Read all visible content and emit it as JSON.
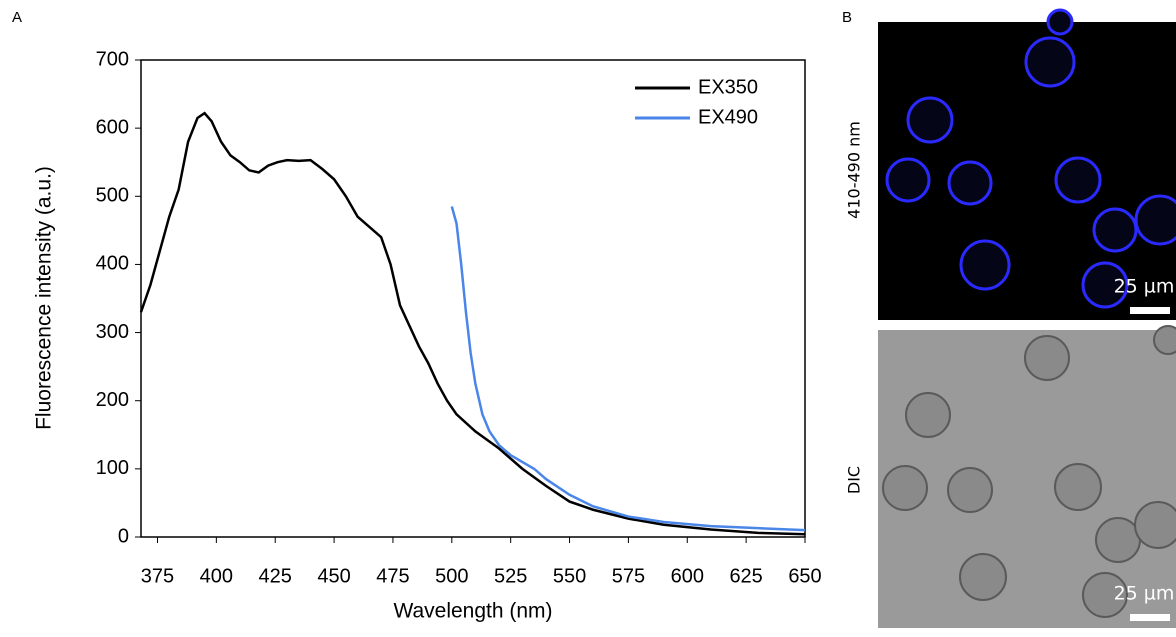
{
  "panel_a_label": "A",
  "panel_b_label": "B",
  "chart_data": {
    "type": "line",
    "xlabel": "Wavelength (nm)",
    "ylabel": "Fluorescence intensity (a.u.)",
    "xlim": [
      368,
      650
    ],
    "ylim": [
      0,
      700
    ],
    "xticks": [
      375,
      400,
      425,
      450,
      475,
      500,
      525,
      550,
      575,
      600,
      625,
      650
    ],
    "yticks": [
      0,
      100,
      200,
      300,
      400,
      500,
      600,
      700
    ],
    "legend": "upper right",
    "series": [
      {
        "name": "EX350",
        "color": "#000000",
        "x": [
          368,
          372,
          376,
          380,
          384,
          388,
          392,
          395,
          398,
          402,
          406,
          410,
          414,
          418,
          422,
          426,
          430,
          435,
          440,
          445,
          450,
          455,
          460,
          465,
          470,
          474,
          478,
          482,
          486,
          490,
          494,
          498,
          502,
          510,
          520,
          530,
          540,
          550,
          560,
          575,
          590,
          610,
          630,
          650
        ],
        "values": [
          330,
          370,
          420,
          470,
          510,
          580,
          615,
          622,
          610,
          580,
          560,
          550,
          538,
          535,
          545,
          550,
          553,
          552,
          553,
          540,
          525,
          500,
          470,
          455,
          440,
          400,
          340,
          310,
          280,
          255,
          225,
          200,
          180,
          155,
          130,
          100,
          75,
          52,
          40,
          27,
          18,
          11,
          6,
          4
        ]
      },
      {
        "name": "EX490",
        "color": "#4a86e8",
        "x": [
          500,
          502,
          504,
          506,
          508,
          510,
          513,
          516,
          520,
          525,
          530,
          535,
          540,
          550,
          560,
          575,
          590,
          610,
          630,
          650
        ],
        "values": [
          485,
          460,
          400,
          330,
          270,
          225,
          180,
          155,
          135,
          120,
          110,
          100,
          85,
          62,
          45,
          30,
          22,
          16,
          13,
          10
        ]
      }
    ]
  },
  "images": [
    {
      "label": "410-490 nm",
      "scale_bar": "25 µm"
    },
    {
      "label": "DIC",
      "scale_bar": "25 µm"
    }
  ]
}
